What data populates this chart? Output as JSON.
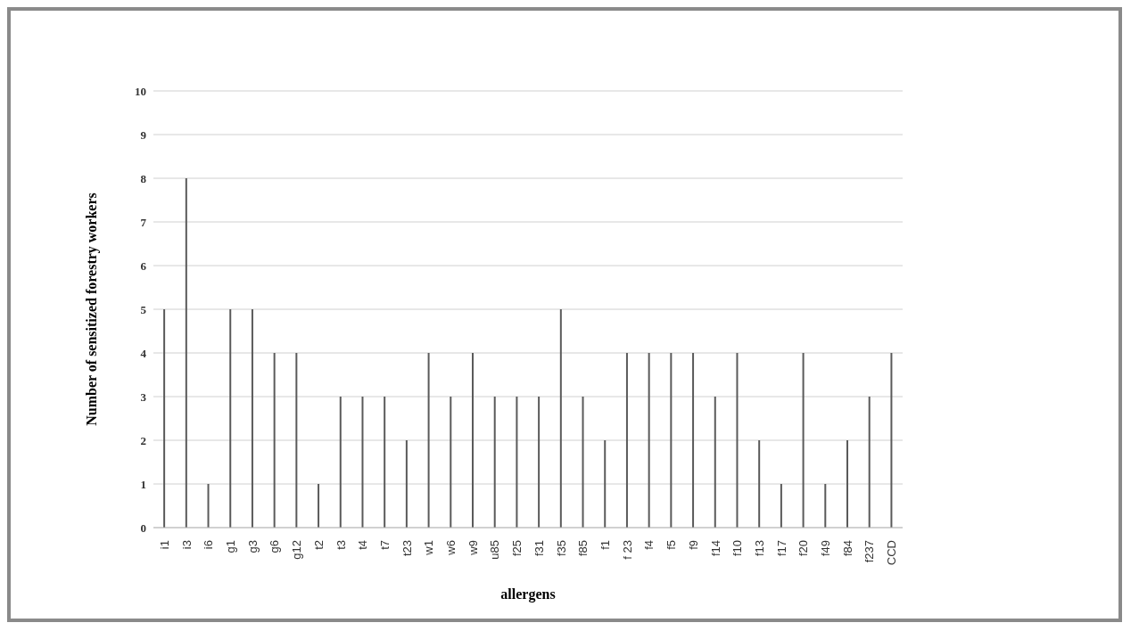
{
  "chart_data": {
    "type": "bar",
    "xlabel": "allergens",
    "ylabel": "Number of sensitized forestry workers",
    "categories": [
      "i1",
      "i3",
      "i6",
      "g1",
      "g3",
      "g6",
      "g12",
      "t2",
      "t3",
      "t4",
      "t7",
      "t23",
      "w1",
      "w6",
      "w9",
      "u85",
      "f25",
      "f31",
      "f35",
      "f85",
      "f1",
      "f 23",
      "f4",
      "f5",
      "f9",
      "f14",
      "f10",
      "f13",
      "f17",
      "f20",
      "f49",
      "f84",
      "f237",
      "CCD"
    ],
    "values": [
      5,
      8,
      1,
      5,
      5,
      4,
      4,
      1,
      3,
      3,
      3,
      2,
      4,
      3,
      4,
      3,
      3,
      3,
      5,
      3,
      2,
      4,
      4,
      4,
      4,
      3,
      4,
      2,
      1,
      4,
      1,
      2,
      3,
      4
    ],
    "color": "#5a5a5a",
    "ylim": [
      0,
      10
    ],
    "yticks": [
      0,
      1,
      2,
      3,
      4,
      5,
      6,
      7,
      8,
      9,
      10
    ],
    "grid": "y"
  }
}
